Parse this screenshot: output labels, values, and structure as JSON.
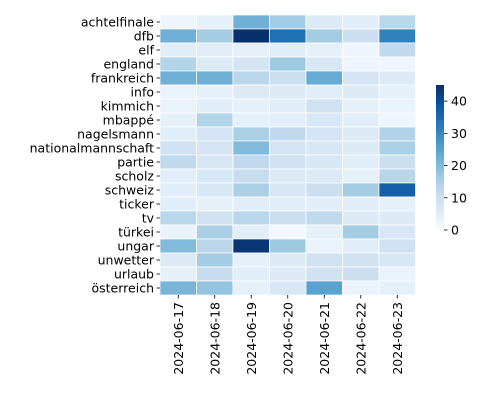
{
  "chart_data": {
    "type": "heatmap",
    "title": "",
    "xlabel": "",
    "ylabel": "",
    "colormap": "Blues",
    "cell_border_color": "#ffffff",
    "grid": false,
    "legend": "colorbar-right",
    "colorbar": {
      "min": 0,
      "max": 45,
      "ticks": [
        0,
        10,
        20,
        30,
        40
      ]
    },
    "x_categories": [
      "2024-06-17",
      "2024-06-18",
      "2024-06-19",
      "2024-06-20",
      "2024-06-21",
      "2024-06-22",
      "2024-06-23"
    ],
    "y_categories": [
      "achtelfinale",
      "dfb",
      "elf",
      "england",
      "frankreich",
      "info",
      "kimmich",
      "mbappé",
      "nagelsmann",
      "nationalmannschaft",
      "partie",
      "scholz",
      "schweiz",
      "ticker",
      "tv",
      "türkei",
      "ungar",
      "unwetter",
      "urlaub",
      "österreich"
    ],
    "values": [
      [
        2,
        4,
        22,
        16,
        6,
        5,
        13
      ],
      [
        22,
        16,
        45,
        34,
        16,
        10,
        31
      ],
      [
        5,
        5,
        4,
        5,
        4,
        2,
        12
      ],
      [
        14,
        6,
        8,
        17,
        7,
        2,
        2
      ],
      [
        22,
        22,
        13,
        10,
        23,
        8,
        6
      ],
      [
        3,
        4,
        6,
        6,
        5,
        6,
        4
      ],
      [
        3,
        5,
        4,
        5,
        9,
        4,
        3
      ],
      [
        4,
        14,
        4,
        5,
        7,
        5,
        2
      ],
      [
        5,
        8,
        15,
        12,
        8,
        6,
        14
      ],
      [
        9,
        8,
        20,
        8,
        7,
        6,
        15
      ],
      [
        12,
        7,
        12,
        9,
        7,
        5,
        10
      ],
      [
        5,
        7,
        11,
        6,
        6,
        4,
        13
      ],
      [
        5,
        7,
        15,
        7,
        10,
        16,
        37
      ],
      [
        5,
        4,
        5,
        5,
        5,
        5,
        4
      ],
      [
        13,
        9,
        13,
        10,
        12,
        6,
        6
      ],
      [
        3,
        15,
        5,
        1,
        4,
        16,
        7
      ],
      [
        20,
        13,
        44,
        17,
        3,
        5,
        9
      ],
      [
        6,
        16,
        4,
        6,
        9,
        9,
        7
      ],
      [
        4,
        11,
        5,
        6,
        9,
        10,
        3
      ],
      [
        21,
        18,
        4,
        7,
        25,
        3,
        4
      ]
    ]
  }
}
